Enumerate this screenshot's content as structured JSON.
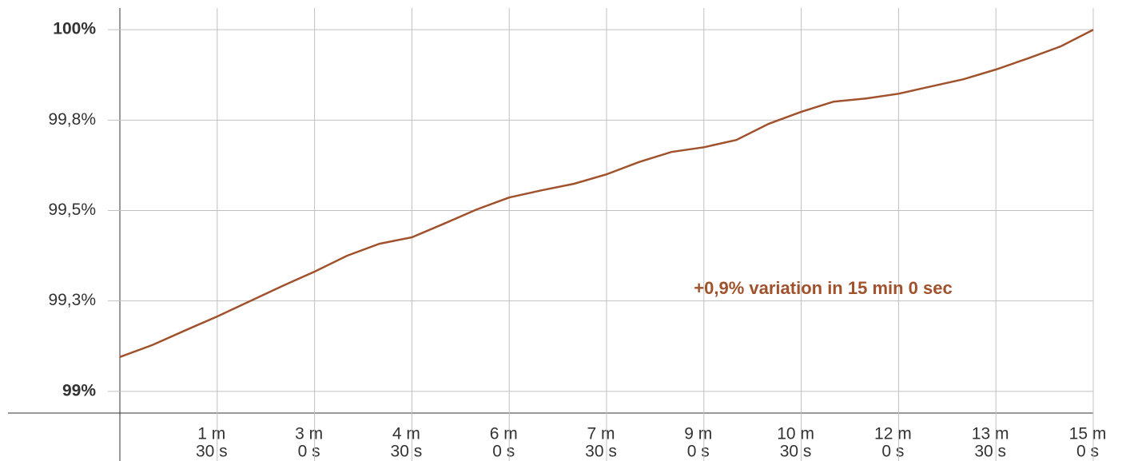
{
  "chart_data": {
    "type": "line",
    "annotation": "+0,9% variation in 15 min 0 sec",
    "x": [
      0,
      30,
      60,
      90,
      120,
      150,
      180,
      210,
      240,
      270,
      300,
      330,
      360,
      390,
      420,
      450,
      480,
      510,
      540,
      570,
      600,
      630,
      660,
      690,
      720,
      750,
      780,
      810,
      840,
      870,
      900
    ],
    "series": [
      {
        "color": "#a0522d",
        "values": [
          99.095,
          99.128,
          99.168,
          99.207,
          99.249,
          99.291,
          99.331,
          99.375,
          99.408,
          99.426,
          99.464,
          99.503,
          99.536,
          99.556,
          99.574,
          99.6,
          99.634,
          99.662,
          99.675,
          99.695,
          99.74,
          99.773,
          99.801,
          99.81,
          99.823,
          99.843,
          99.863,
          99.89,
          99.921,
          99.954,
          100
        ]
      }
    ],
    "xlim": [
      0,
      900
    ],
    "ylim": [
      98.94,
      100.06
    ],
    "yticks": [
      {
        "value": 99,
        "label": "99%"
      },
      {
        "value": 99.25,
        "label": "99,3%"
      },
      {
        "value": 99.5,
        "label": "99,5%"
      },
      {
        "value": 99.75,
        "label": "99,8%"
      },
      {
        "value": 100,
        "label": "100%"
      }
    ],
    "xticks": [
      {
        "value": 90,
        "label": [
          "1 m",
          "30 s"
        ]
      },
      {
        "value": 180,
        "label": [
          "3 m",
          "0 s"
        ]
      },
      {
        "value": 270,
        "label": [
          "4 m",
          "30 s"
        ]
      },
      {
        "value": 360,
        "label": [
          "6 m",
          "0 s"
        ]
      },
      {
        "value": 450,
        "label": [
          "7 m",
          "30 s"
        ]
      },
      {
        "value": 540,
        "label": [
          "9 m",
          "0 s"
        ]
      },
      {
        "value": 630,
        "label": [
          "10 m",
          "30 s"
        ]
      },
      {
        "value": 720,
        "label": [
          "12 m",
          "0 s"
        ]
      },
      {
        "value": 810,
        "label": [
          "13 m",
          "30 s"
        ]
      },
      {
        "value": 900,
        "label": [
          "15 m",
          "0 s"
        ]
      }
    ],
    "grid": true
  }
}
